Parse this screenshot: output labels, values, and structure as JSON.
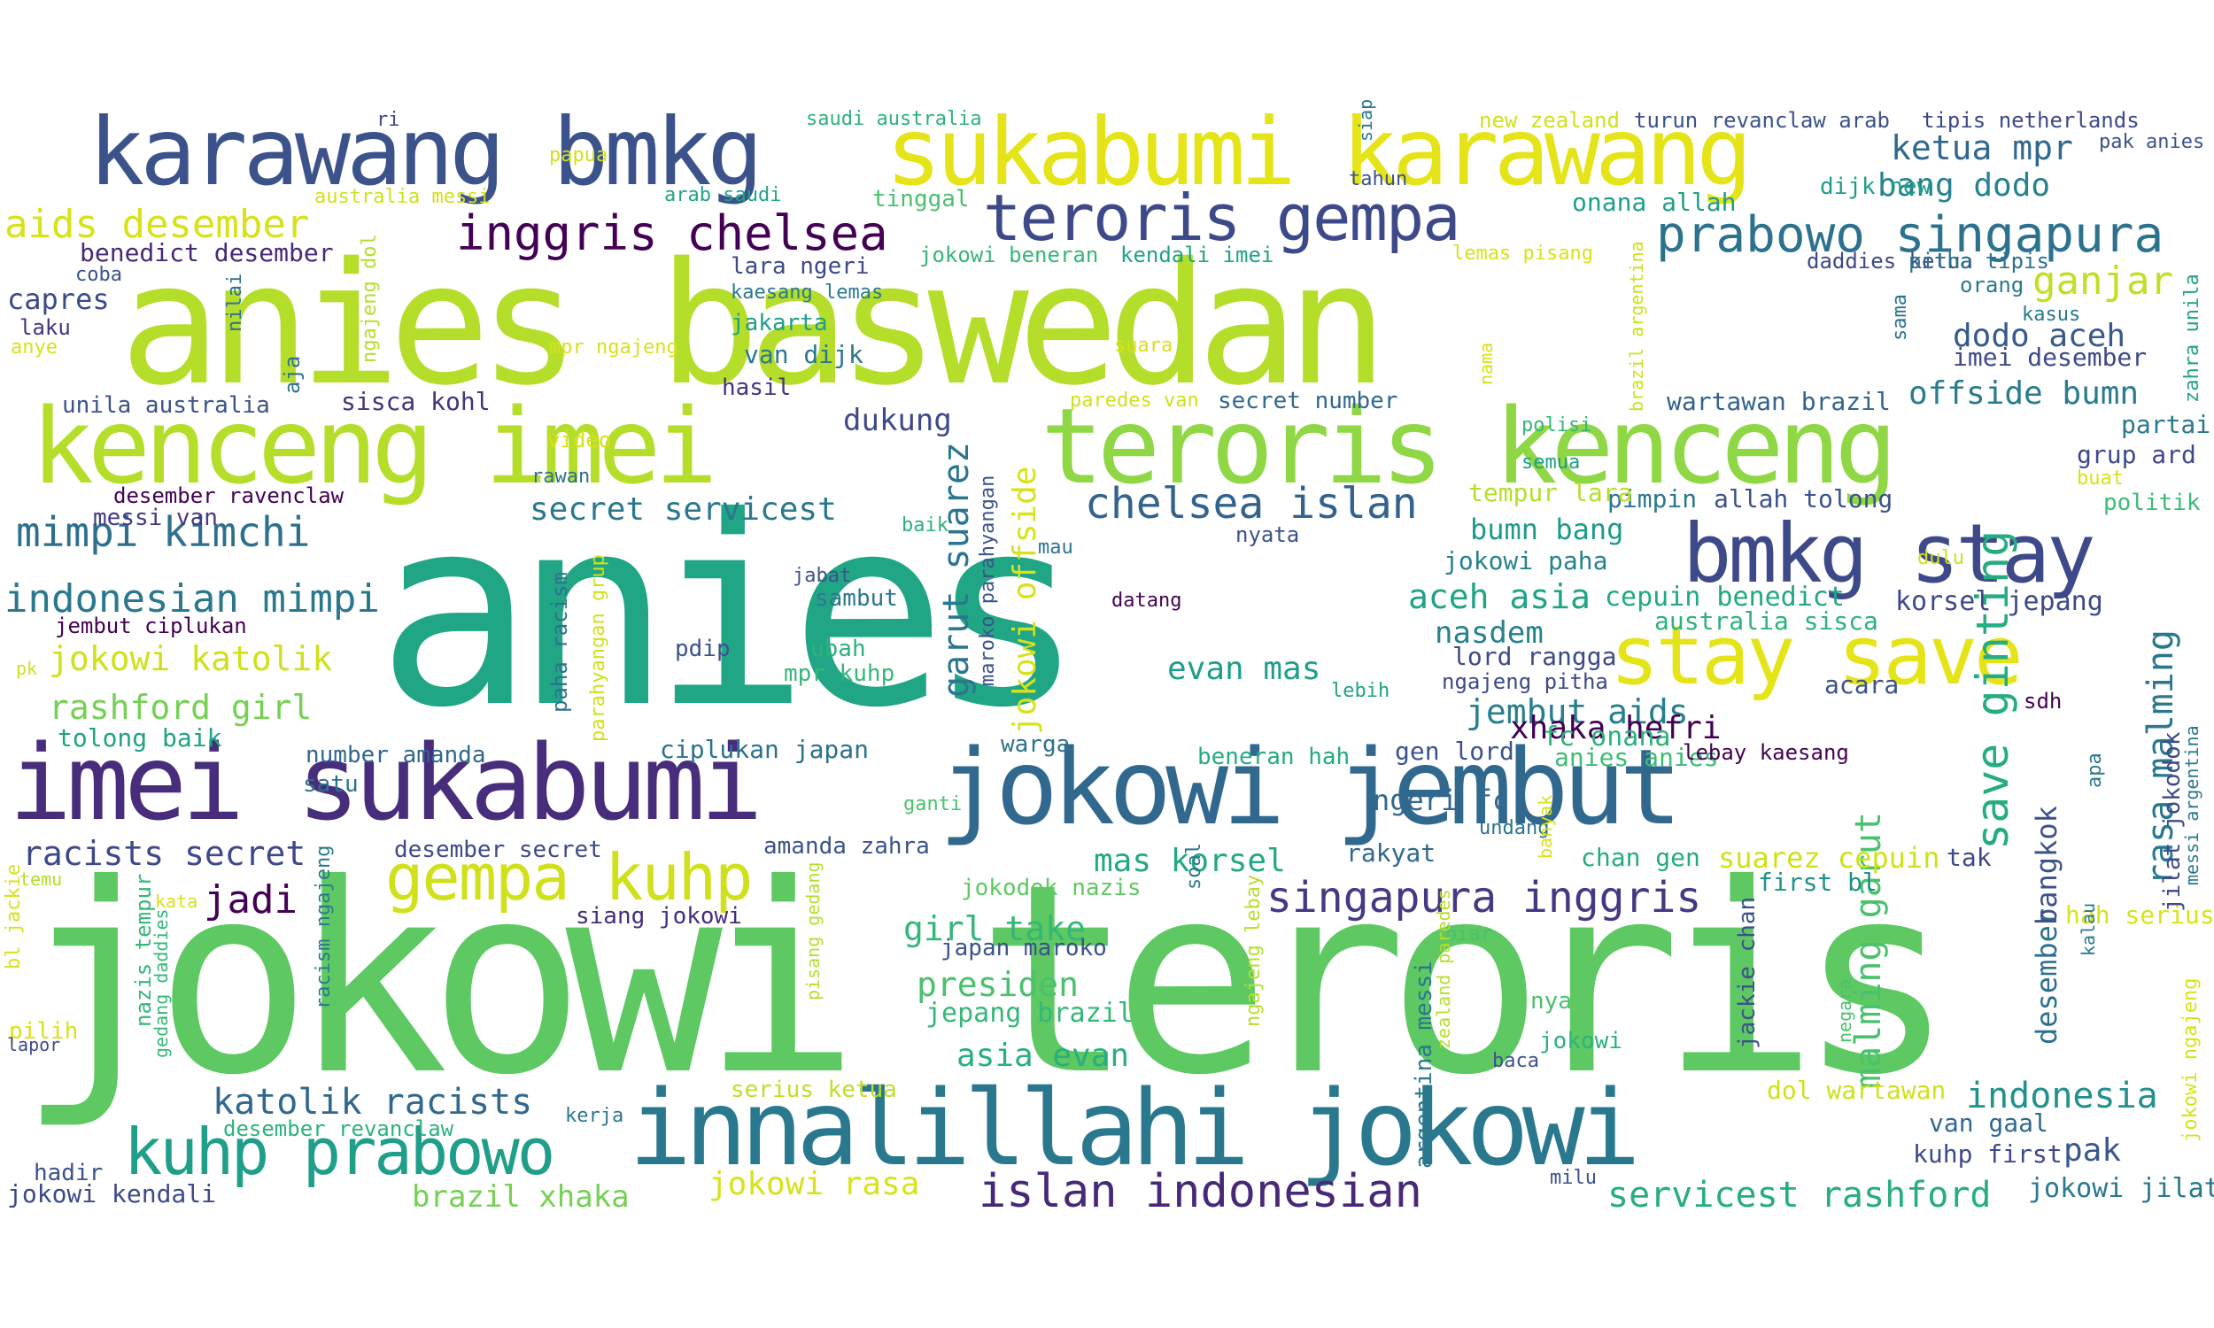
{
  "words": [
    {
      "text": "anies",
      "color": "#21a685"
    },
    {
      "text": "jokowi teroris",
      "color": "#5ec962"
    },
    {
      "text": "anies baswedan",
      "color": "#b5de2b"
    },
    {
      "text": "innalillahi jokowi",
      "color": "#2a788e"
    },
    {
      "text": "imei sukabumi",
      "color": "#472d7b"
    },
    {
      "text": "jokowi jembut",
      "color": "#31688e"
    },
    {
      "text": "kenceng imei",
      "color": "#b5de2b"
    },
    {
      "text": "teroris kenceng",
      "color": "#8fd744"
    },
    {
      "text": "sukabumi karawang",
      "color": "#e5e419"
    },
    {
      "text": "karawang bmkg",
      "color": "#3b528b"
    },
    {
      "text": "bmkg stay",
      "color": "#3e4989"
    },
    {
      "text": "stay save",
      "color": "#e5e419"
    },
    {
      "text": "kuhp prabowo",
      "color": "#1f9e89"
    },
    {
      "text": "gempa kuhp",
      "color": "#d0e11c"
    },
    {
      "text": "teroris gempa",
      "color": "#3e4989"
    },
    {
      "text": "prabowo singapura",
      "color": "#2c728e"
    },
    {
      "text": "inggris chelsea",
      "color": "#440154"
    },
    {
      "text": "islan indonesian",
      "color": "#482878"
    },
    {
      "text": "singapura inggris",
      "color": "#443983"
    },
    {
      "text": "servicest rashford",
      "color": "#26ad81"
    },
    {
      "text": "chelsea islan",
      "color": "#33638d"
    },
    {
      "text": "mimpi kimchi",
      "color": "#2d708e"
    },
    {
      "text": "indonesian mimpi",
      "color": "#2a788e"
    },
    {
      "text": "aids desember",
      "color": "#d8e219"
    },
    {
      "text": "ketua mpr",
      "color": "#31688e"
    },
    {
      "text": "bang dodo",
      "color": "#26828e"
    },
    {
      "text": "ganjar",
      "color": "#c0df25"
    },
    {
      "text": "dodo aceh",
      "color": "#38598c"
    },
    {
      "text": "offside bumn",
      "color": "#287c8e"
    },
    {
      "text": "save ginting",
      "color": "#25ac82"
    },
    {
      "text": "rasa malming",
      "color": "#2a788e"
    },
    {
      "text": "malming garut",
      "color": "#4ac16d"
    },
    {
      "text": "garut suarez",
      "color": "#2a778e"
    },
    {
      "text": "jokowi offside",
      "color": "#d8e219"
    },
    {
      "text": "jembut aids",
      "color": "#277f8e"
    },
    {
      "text": "xhaka hefri",
      "color": "#440154"
    },
    {
      "text": "aceh asia",
      "color": "#20a386"
    },
    {
      "text": "jokowi katolik",
      "color": "#d0e11c"
    },
    {
      "text": "rashford girl",
      "color": "#75d054"
    },
    {
      "text": "katolik racists",
      "color": "#31688e"
    },
    {
      "text": "racists secret",
      "color": "#3e4989"
    },
    {
      "text": "secret servicest",
      "color": "#2a788e"
    },
    {
      "text": "evan mas",
      "color": "#1f9e89"
    },
    {
      "text": "asia evan",
      "color": "#29af7f"
    },
    {
      "text": "mas korsel",
      "color": "#22a884"
    },
    {
      "text": "girl take",
      "color": "#35b779"
    },
    {
      "text": "presiden",
      "color": "#4ac16d"
    },
    {
      "text": "indonesia",
      "color": "#21918c"
    },
    {
      "text": "pak",
      "color": "#39568c"
    },
    {
      "text": "jadi",
      "color": "#440154"
    },
    {
      "text": "dukung",
      "color": "#3e4989"
    },
    {
      "text": "nasdem",
      "color": "#26828e"
    },
    {
      "text": "bumn bang",
      "color": "#1f9a8a"
    },
    {
      "text": "brazil xhaka",
      "color": "#75d054"
    },
    {
      "text": "jokowi rasa",
      "color": "#d8e219"
    },
    {
      "text": "suarez cepuin",
      "color": "#d0e11c"
    },
    {
      "text": "desember",
      "color": "#2d708e"
    },
    {
      "text": "bangkok",
      "color": "#3b528b"
    },
    {
      "text": "capres",
      "color": "#3e4989"
    },
    {
      "text": "benedict desember",
      "color": "#482878"
    },
    {
      "text": "sisca kohl",
      "color": "#46337e"
    },
    {
      "text": "unila australia",
      "color": "#3b528b"
    },
    {
      "text": "desember ravenclaw",
      "color": "#440154"
    },
    {
      "text": "messi van",
      "color": "#443983"
    },
    {
      "text": "jembut ciplukan",
      "color": "#440154"
    },
    {
      "text": "tolong baik",
      "color": "#20a386"
    },
    {
      "text": "number amanda",
      "color": "#31688e"
    },
    {
      "text": "satu",
      "color": "#2c728e"
    },
    {
      "text": "ciplukan japan",
      "color": "#2c728e"
    },
    {
      "text": "warga",
      "color": "#2c728e"
    },
    {
      "text": "desember secret",
      "color": "#3e4989"
    },
    {
      "text": "amanda zahra",
      "color": "#3b528b"
    },
    {
      "text": "jokowi kendali",
      "color": "#3e4989"
    },
    {
      "text": "hadir",
      "color": "#3b528b"
    },
    {
      "text": "desember revanclaw",
      "color": "#2db27d"
    },
    {
      "text": "kerja",
      "color": "#2a788e"
    },
    {
      "text": "serius ketua",
      "color": "#c0df25"
    },
    {
      "text": "siang jokowi",
      "color": "#472d7b"
    },
    {
      "text": "jokodok nazis",
      "color": "#5ec962"
    },
    {
      "text": "japan maroko",
      "color": "#3b528b"
    },
    {
      "text": "jepang brazil",
      "color": "#35b779"
    },
    {
      "text": "rakyat",
      "color": "#31688e"
    },
    {
      "text": "gen lord",
      "color": "#3b528b"
    },
    {
      "text": "ngeri fc",
      "color": "#31688e"
    },
    {
      "text": "beneran hah",
      "color": "#25ab82"
    },
    {
      "text": "lord rangga",
      "color": "#3e4989"
    },
    {
      "text": "ngajeng pitha",
      "color": "#3e4989"
    },
    {
      "text": "fc onana",
      "color": "#2db27d"
    },
    {
      "text": "anies anies",
      "color": "#3dbc74"
    },
    {
      "text": "lebay kaesang",
      "color": "#440154"
    },
    {
      "text": "chan gen",
      "color": "#25ab82"
    },
    {
      "text": "first bl",
      "color": "#21918c"
    },
    {
      "text": "kuhp first",
      "color": "#3e4989"
    },
    {
      "text": "van gaal",
      "color": "#31688e"
    },
    {
      "text": "dol wartawan",
      "color": "#d0e11c"
    },
    {
      "text": "jokowi jilat",
      "color": "#2a788e"
    },
    {
      "text": "hah serius",
      "color": "#d8e219"
    },
    {
      "text": "korsel jepang",
      "color": "#3e4989"
    },
    {
      "text": "cepuin benedict",
      "color": "#22a884"
    },
    {
      "text": "australia sisca",
      "color": "#2db27d"
    },
    {
      "text": "pimpin",
      "color": "#2a788e"
    },
    {
      "text": "allah tolong",
      "color": "#3b528b"
    },
    {
      "text": "tempur lara",
      "color": "#b5de2b"
    },
    {
      "text": "jokowi paha",
      "color": "#26828e"
    },
    {
      "text": "wartawan brazil",
      "color": "#33638d"
    },
    {
      "text": "secret number",
      "color": "#31688e"
    },
    {
      "text": "imei desember",
      "color": "#3e4989"
    },
    {
      "text": "grup ard",
      "color": "#3e4989"
    },
    {
      "text": "partai",
      "color": "#2a788e"
    },
    {
      "text": "politik",
      "color": "#3dbc74"
    },
    {
      "text": "acara",
      "color": "#3b528b"
    },
    {
      "text": "sdh",
      "color": "#440154"
    },
    {
      "text": "tak",
      "color": "#3e4989"
    },
    {
      "text": "onana allah",
      "color": "#1f9e89"
    },
    {
      "text": "dijk new",
      "color": "#1f9e89"
    },
    {
      "text": "daddies ketua",
      "color": "#3e4989"
    },
    {
      "text": "pitha tipis",
      "color": "#2c728e"
    },
    {
      "text": "orang",
      "color": "#2a788e"
    },
    {
      "text": "kasus",
      "color": "#2a788e"
    },
    {
      "text": "turun revanclaw arab",
      "color": "#3b528b"
    },
    {
      "text": "new zealand",
      "color": "#d0e11c"
    },
    {
      "text": "tipis netherlands",
      "color": "#3e4989"
    },
    {
      "text": "pak anies",
      "color": "#3b528b"
    },
    {
      "text": "tahun",
      "color": "#3b528b"
    },
    {
      "text": "saudi australia",
      "color": "#2db27d"
    },
    {
      "text": "arab saudi",
      "color": "#20a386"
    },
    {
      "text": "tinggal",
      "color": "#4ac16d"
    },
    {
      "text": "papua",
      "color": "#d0e11c"
    },
    {
      "text": "ri",
      "color": "#3e4989"
    },
    {
      "text": "australia messi",
      "color": "#d0e11c"
    },
    {
      "text": "coba",
      "color": "#3b528b"
    },
    {
      "text": "laku",
      "color": "#46337e"
    },
    {
      "text": "anye",
      "color": "#d8e219"
    },
    {
      "text": "nilai",
      "color": "#2c728e"
    },
    {
      "text": "jokowi beneran",
      "color": "#35b779"
    },
    {
      "text": "kendali imei",
      "color": "#20a386"
    },
    {
      "text": "lemas pisang",
      "color": "#d8e219"
    },
    {
      "text": "lara ngeri",
      "color": "#3e4989"
    },
    {
      "text": "kaesang lemas",
      "color": "#2a788e"
    },
    {
      "text": "jakarta",
      "color": "#1f9e89"
    },
    {
      "text": "van dijk",
      "color": "#2a788e"
    },
    {
      "text": "hasil",
      "color": "#46337e"
    },
    {
      "text": "mpr ngajeng",
      "color": "#d8e219"
    },
    {
      "text": "suara",
      "color": "#d8e219"
    },
    {
      "text": "paredes van",
      "color": "#d0e11c"
    },
    {
      "text": "polisi",
      "color": "#35b779"
    },
    {
      "text": "semua",
      "color": "#1f9e89"
    },
    {
      "text": "video",
      "color": "#d8e219"
    },
    {
      "text": "rawan",
      "color": "#2c728e"
    },
    {
      "text": "mau",
      "color": "#2c728e"
    },
    {
      "text": "baik",
      "color": "#2db27d"
    },
    {
      "text": "nyata",
      "color": "#3b528b"
    },
    {
      "text": "jabat",
      "color": "#3b528b"
    },
    {
      "text": "sambut",
      "color": "#2a788e"
    },
    {
      "text": "datang",
      "color": "#440154"
    },
    {
      "text": "pdip",
      "color": "#3b528b"
    },
    {
      "text": "ubah",
      "color": "#2db27d"
    },
    {
      "text": "mpr kuhp",
      "color": "#35b779"
    },
    {
      "text": "lebih",
      "color": "#20a386"
    },
    {
      "text": "dulu",
      "color": "#d0e11c"
    },
    {
      "text": "buat",
      "color": "#d8e219"
    },
    {
      "text": "ganti",
      "color": "#4ac16d"
    },
    {
      "text": "undang",
      "color": "#2c728e"
    },
    {
      "text": "soal",
      "color": "#2a788e"
    },
    {
      "text": "biar",
      "color": "#4ac16d"
    },
    {
      "text": "nya",
      "color": "#4ac16d"
    },
    {
      "text": "jokowi",
      "color": "#2db27d"
    },
    {
      "text": "baca",
      "color": "#3b528b"
    },
    {
      "text": "milu",
      "color": "#3b528b"
    },
    {
      "text": "pilih",
      "color": "#d8e219"
    },
    {
      "text": "lapor",
      "color": "#3e4989"
    },
    {
      "text": "pk",
      "color": "#d0e11c"
    },
    {
      "text": "temu",
      "color": "#b5de2b"
    },
    {
      "text": "kata",
      "color": "#d8e219"
    },
    {
      "text": "siap",
      "color": "#2a788e"
    },
    {
      "text": "sama",
      "color": "#2c728e"
    },
    {
      "text": "nama",
      "color": "#d8e219"
    },
    {
      "text": "banyak",
      "color": "#d8e219"
    },
    {
      "text": "kalau",
      "color": "#2a788e"
    },
    {
      "text": "negara",
      "color": "#4ac16d"
    },
    {
      "text": "apa",
      "color": "#2a788e"
    },
    {
      "text": "aja",
      "color": "#2c728e"
    },
    {
      "text": "ngajeng dol",
      "color": "#b5de2b"
    },
    {
      "text": "paha racism",
      "color": "#2c728e"
    },
    {
      "text": "parahyangan grup",
      "color": "#d0e11c"
    },
    {
      "text": "maroko parahyangan",
      "color": "#3b528b"
    },
    {
      "text": "racism ngajeng",
      "color": "#2a788e"
    },
    {
      "text": "nazis tempur",
      "color": "#35b779"
    },
    {
      "text": "gedang daddies",
      "color": "#35b779"
    },
    {
      "text": "pisang gedang",
      "color": "#b5de2b"
    },
    {
      "text": "ngajeng lebay",
      "color": "#b5de2b"
    },
    {
      "text": "zealand paredes",
      "color": "#b5de2b"
    },
    {
      "text": "argentina messi",
      "color": "#2a788e"
    },
    {
      "text": "jackie chan",
      "color": "#3b528b"
    },
    {
      "text": "brazil argentina",
      "color": "#d0e11c"
    },
    {
      "text": "jilat jokodok",
      "color": "#3e4989"
    },
    {
      "text": "zahra unila",
      "color": "#20a386"
    },
    {
      "text": "messi argentina",
      "color": "#2a788e"
    },
    {
      "text": "jokowi ngajeng",
      "color": "#d8e219"
    },
    {
      "text": "bl jackie",
      "color": "#d8e219"
    }
  ]
}
